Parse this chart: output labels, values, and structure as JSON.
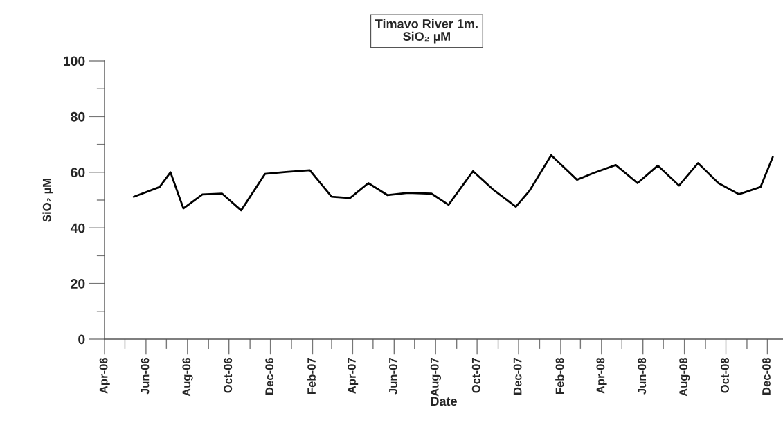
{
  "chart_data": {
    "type": "line",
    "title": "Timavo River 1m.",
    "subtitle": "SiO₂ µM",
    "xlabel": "Date",
    "ylabel": "SiO₂ µM",
    "x": [
      "2006-05-14",
      "2006-06-21",
      "2006-07-07",
      "2006-07-26",
      "2006-08-23",
      "2006-09-21",
      "2006-10-19",
      "2006-11-23",
      "2006-12-24",
      "2007-01-28",
      "2007-03-01",
      "2007-03-28",
      "2007-04-24",
      "2007-05-22",
      "2007-06-21",
      "2007-07-26",
      "2007-08-20",
      "2007-09-25",
      "2007-10-24",
      "2007-11-27",
      "2007-12-17",
      "2008-01-18",
      "2008-02-25",
      "2008-03-20",
      "2008-04-22",
      "2008-05-24",
      "2008-06-23",
      "2008-07-24",
      "2008-08-21",
      "2008-09-20",
      "2008-10-20",
      "2008-11-21",
      "2008-12-09"
    ],
    "series": [
      {
        "color": "#000000",
        "values": [
          51.2,
          54.7,
          60.0,
          47.0,
          52.0,
          52.3,
          46.3,
          59.4,
          60.1,
          60.7,
          51.2,
          50.7,
          56.1,
          51.8,
          52.6,
          52.3,
          48.3,
          60.4,
          53.9,
          47.6,
          53.3,
          66.1,
          57.3,
          59.7,
          62.6,
          56.1,
          62.4,
          55.2,
          63.3,
          56.1,
          52.1,
          54.7,
          65.5
        ]
      }
    ],
    "xlim": [
      "2006-04-01",
      "2008-12-24"
    ],
    "xticks": [
      {
        "value": "2006-04-01",
        "label": "Apr-06"
      },
      {
        "value": "2006-05-01",
        "label": null
      },
      {
        "value": "2006-06-01",
        "label": "Jun-06"
      },
      {
        "value": "2006-07-01",
        "label": null
      },
      {
        "value": "2006-08-01",
        "label": "Aug-06"
      },
      {
        "value": "2006-09-01",
        "label": null
      },
      {
        "value": "2006-10-01",
        "label": "Oct-06"
      },
      {
        "value": "2006-11-01",
        "label": null
      },
      {
        "value": "2006-12-01",
        "label": "Dec-06"
      },
      {
        "value": "2007-01-01",
        "label": null
      },
      {
        "value": "2007-02-01",
        "label": "Feb-07"
      },
      {
        "value": "2007-03-01",
        "label": null
      },
      {
        "value": "2007-04-01",
        "label": "Apr-07"
      },
      {
        "value": "2007-05-01",
        "label": null
      },
      {
        "value": "2007-06-01",
        "label": "Jun-07"
      },
      {
        "value": "2007-07-01",
        "label": null
      },
      {
        "value": "2007-08-01",
        "label": "Aug-07"
      },
      {
        "value": "2007-09-01",
        "label": null
      },
      {
        "value": "2007-10-01",
        "label": "Oct-07"
      },
      {
        "value": "2007-11-01",
        "label": null
      },
      {
        "value": "2007-12-01",
        "label": "Dec-07"
      },
      {
        "value": "2008-01-01",
        "label": null
      },
      {
        "value": "2008-02-01",
        "label": "Feb-08"
      },
      {
        "value": "2008-03-01",
        "label": null
      },
      {
        "value": "2008-04-01",
        "label": "Apr-08"
      },
      {
        "value": "2008-05-01",
        "label": null
      },
      {
        "value": "2008-06-01",
        "label": "Jun-08"
      },
      {
        "value": "2008-07-01",
        "label": null
      },
      {
        "value": "2008-08-01",
        "label": "Aug-08"
      },
      {
        "value": "2008-09-01",
        "label": null
      },
      {
        "value": "2008-10-01",
        "label": "Oct-08"
      },
      {
        "value": "2008-11-01",
        "label": null
      },
      {
        "value": "2008-12-01",
        "label": "Dec-08"
      }
    ],
    "ylim": [
      0,
      100
    ],
    "yticks": [
      0,
      {
        "value": 10,
        "label": null
      },
      20,
      {
        "value": 30,
        "label": null
      },
      40,
      {
        "value": 50,
        "label": null
      },
      60,
      {
        "value": 70,
        "label": null
      },
      80,
      {
        "value": 90,
        "label": null
      },
      100
    ],
    "grid": false,
    "marker": "none",
    "line_style": "solid"
  }
}
